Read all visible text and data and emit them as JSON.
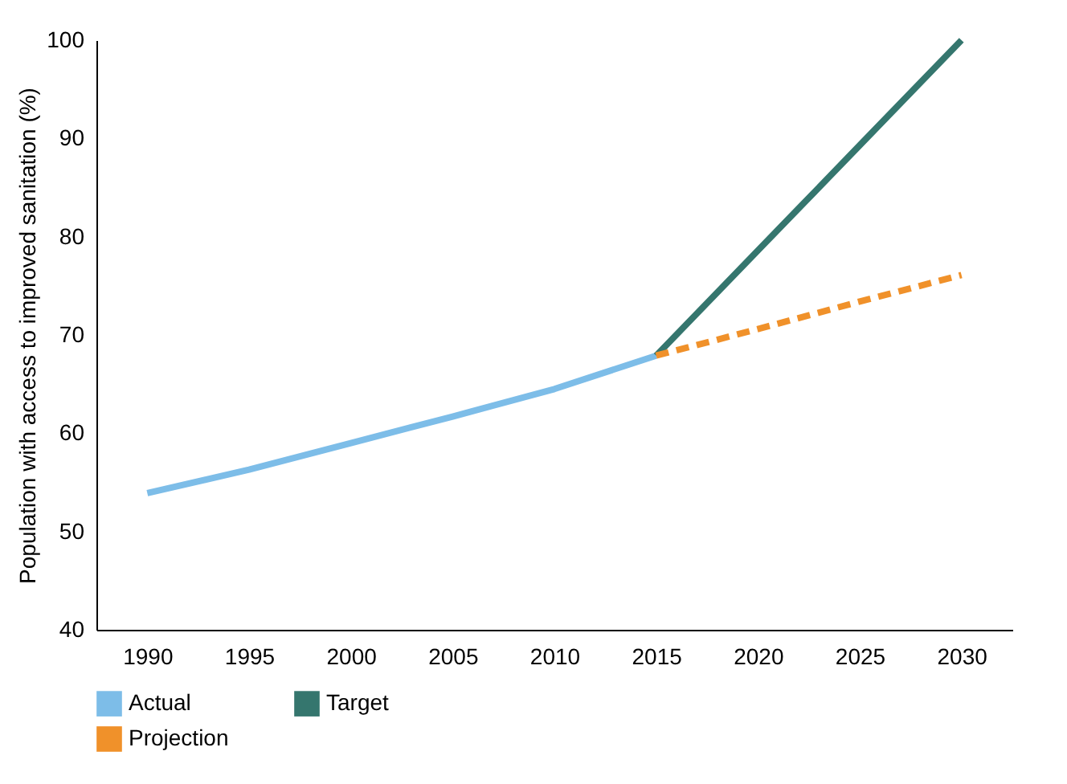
{
  "chart_data": {
    "type": "line",
    "ylabel": "Population with access to improved sanitation (%)",
    "categories": [
      "1990",
      "1995",
      "2000",
      "2005",
      "2010",
      "2015",
      "2020",
      "2025",
      "2030"
    ],
    "series": [
      {
        "name": "Actual",
        "color": "#7dbde8",
        "values": [
          53.9,
          56.3,
          59,
          61.7,
          64.5,
          67.9,
          null,
          null,
          null
        ]
      },
      {
        "name": "Target",
        "color": "#35766e",
        "values": [
          null,
          null,
          null,
          null,
          null,
          67.9,
          78.6,
          89.3,
          100
        ]
      },
      {
        "name": "Projection",
        "color": "#f0912a",
        "line_style": "dashed",
        "values": [
          null,
          null,
          null,
          null,
          null,
          67.9,
          70.6,
          73.4,
          76.1
        ]
      }
    ],
    "ylim": [
      40,
      100
    ],
    "yticks": [
      40,
      50,
      60,
      70,
      80,
      90,
      100
    ],
    "grid": false,
    "legend": "bottom",
    "marker": "none"
  }
}
